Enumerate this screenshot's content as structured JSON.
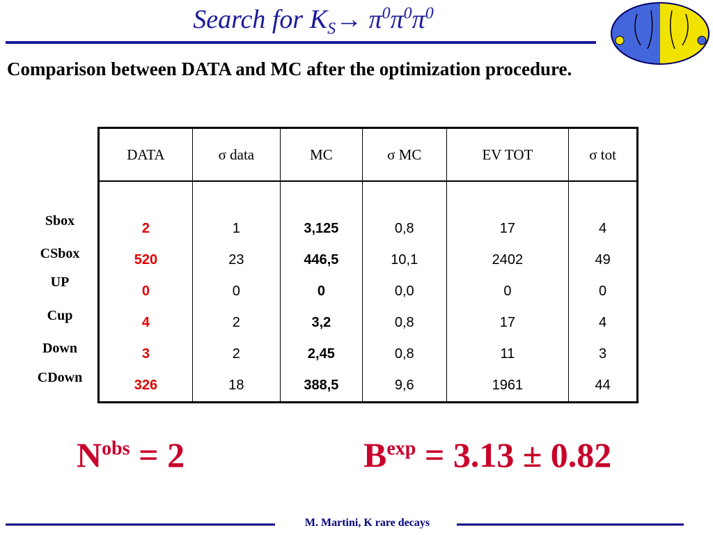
{
  "title": [
    "Search for K",
    "S",
    "→ π",
    "0",
    "π",
    "0",
    "π",
    "0"
  ],
  "subtitle": "Comparison between DATA and MC after the optimization procedure.",
  "table": {
    "headers": [
      "DATA",
      "σ data",
      "MC",
      "σ MC",
      "EV TOT",
      "σ tot"
    ],
    "row_labels": [
      "Sbox",
      "CSbox",
      "UP",
      "Cup",
      "Down",
      "CDown"
    ],
    "rows": [
      [
        "2",
        "1",
        "3,125",
        "0,8",
        "17",
        "4"
      ],
      [
        "520",
        "23",
        "446,5",
        "10,1",
        "2402",
        "49"
      ],
      [
        "0",
        "0",
        "0",
        "0,0",
        "0",
        "0"
      ],
      [
        "4",
        "2",
        "3,2",
        "0,8",
        "17",
        "4"
      ],
      [
        "3",
        "2",
        "2,45",
        "0,8",
        "11",
        "3"
      ],
      [
        "326",
        "18",
        "388,5",
        "9,6",
        "1961",
        "44"
      ]
    ]
  },
  "n_obs": {
    "symbol": "N",
    "sup": "obs",
    "rest": " = 2"
  },
  "b_exp": {
    "symbol": "B",
    "sup": "exp",
    "rest": " = 3.13 ± 0.82"
  },
  "footer": "M. Martini, K rare decays"
}
